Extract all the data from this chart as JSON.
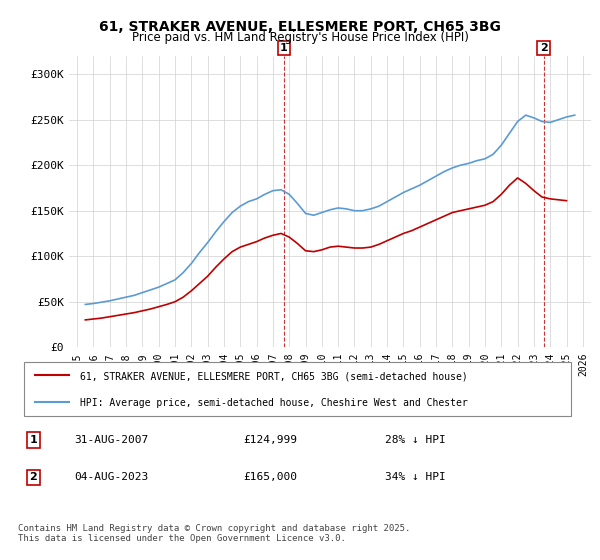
{
  "title": "61, STRAKER AVENUE, ELLESMERE PORT, CH65 3BG",
  "subtitle": "Price paid vs. HM Land Registry's House Price Index (HPI)",
  "hpi_label": "HPI: Average price, semi-detached house, Cheshire West and Chester",
  "property_label": "61, STRAKER AVENUE, ELLESMERE PORT, CH65 3BG (semi-detached house)",
  "annotation1": {
    "num": "1",
    "date": "31-AUG-2007",
    "price": "£124,999",
    "hpi_diff": "28% ↓ HPI",
    "x_year": 2007.67
  },
  "annotation2": {
    "num": "2",
    "date": "04-AUG-2023",
    "price": "£165,000",
    "hpi_diff": "34% ↓ HPI",
    "x_year": 2023.59
  },
  "footer": "Contains HM Land Registry data © Crown copyright and database right 2025.\nThis data is licensed under the Open Government Licence v3.0.",
  "xlim": [
    1994.5,
    2026.5
  ],
  "ylim": [
    0,
    320000
  ],
  "yticks": [
    0,
    50000,
    100000,
    150000,
    200000,
    250000,
    300000
  ],
  "ytick_labels": [
    "£0",
    "£50K",
    "£100K",
    "£150K",
    "£200K",
    "£250K",
    "£300K"
  ],
  "xticks": [
    1995,
    1996,
    1997,
    1998,
    1999,
    2000,
    2001,
    2002,
    2003,
    2004,
    2005,
    2006,
    2007,
    2008,
    2009,
    2010,
    2011,
    2012,
    2013,
    2014,
    2015,
    2016,
    2017,
    2018,
    2019,
    2020,
    2021,
    2022,
    2023,
    2024,
    2025,
    2026
  ],
  "hpi_color": "#5b9bd5",
  "property_color": "#c00000",
  "annotation_box_color": "#c00000",
  "background_color": "#ffffff",
  "grid_color": "#d0d0d0",
  "hpi_data": {
    "years": [
      1995.5,
      1996.0,
      1996.5,
      1997.0,
      1997.5,
      1998.0,
      1998.5,
      1999.0,
      1999.5,
      2000.0,
      2000.5,
      2001.0,
      2001.5,
      2002.0,
      2002.5,
      2003.0,
      2003.5,
      2004.0,
      2004.5,
      2005.0,
      2005.5,
      2006.0,
      2006.5,
      2007.0,
      2007.5,
      2008.0,
      2008.5,
      2009.0,
      2009.5,
      2010.0,
      2010.5,
      2011.0,
      2011.5,
      2012.0,
      2012.5,
      2013.0,
      2013.5,
      2014.0,
      2014.5,
      2015.0,
      2015.5,
      2016.0,
      2016.5,
      2017.0,
      2017.5,
      2018.0,
      2018.5,
      2019.0,
      2019.5,
      2020.0,
      2020.5,
      2021.0,
      2021.5,
      2022.0,
      2022.5,
      2023.0,
      2023.5,
      2024.0,
      2024.5,
      2025.0,
      2025.5
    ],
    "values": [
      47000,
      48000,
      49500,
      51000,
      53000,
      55000,
      57000,
      60000,
      63000,
      66000,
      70000,
      74000,
      82000,
      92000,
      104000,
      115000,
      127000,
      138000,
      148000,
      155000,
      160000,
      163000,
      168000,
      172000,
      173000,
      168000,
      158000,
      147000,
      145000,
      148000,
      151000,
      153000,
      152000,
      150000,
      150000,
      152000,
      155000,
      160000,
      165000,
      170000,
      174000,
      178000,
      183000,
      188000,
      193000,
      197000,
      200000,
      202000,
      205000,
      207000,
      212000,
      222000,
      235000,
      248000,
      255000,
      252000,
      248000,
      247000,
      250000,
      253000,
      255000
    ]
  },
  "property_data": {
    "years": [
      1995.5,
      1996.0,
      1996.5,
      1997.0,
      1997.5,
      1998.0,
      1998.5,
      1999.0,
      1999.5,
      2000.0,
      2000.5,
      2001.0,
      2001.5,
      2002.0,
      2002.5,
      2003.0,
      2003.5,
      2004.0,
      2004.5,
      2005.0,
      2005.5,
      2006.0,
      2006.5,
      2007.0,
      2007.5,
      2008.0,
      2008.5,
      2009.0,
      2009.5,
      2010.0,
      2010.5,
      2011.0,
      2011.5,
      2012.0,
      2012.5,
      2013.0,
      2013.5,
      2014.0,
      2014.5,
      2015.0,
      2015.5,
      2016.0,
      2016.5,
      2017.0,
      2017.5,
      2018.0,
      2018.5,
      2019.0,
      2019.5,
      2020.0,
      2020.5,
      2021.0,
      2021.5,
      2022.0,
      2022.5,
      2023.0,
      2023.5,
      2024.0,
      2024.5,
      2025.0
    ],
    "values": [
      30000,
      31000,
      32000,
      33500,
      35000,
      36500,
      38000,
      40000,
      42000,
      44500,
      47000,
      50000,
      55000,
      62000,
      70000,
      78000,
      88000,
      97000,
      105000,
      110000,
      113000,
      116000,
      120000,
      123000,
      124999,
      121000,
      114000,
      106000,
      105000,
      107000,
      110000,
      111000,
      110000,
      109000,
      109000,
      110000,
      113000,
      117000,
      121000,
      125000,
      128000,
      132000,
      136000,
      140000,
      144000,
      148000,
      150000,
      152000,
      154000,
      156000,
      160000,
      168000,
      178000,
      186000,
      180000,
      172000,
      165000,
      163000,
      162000,
      161000
    ]
  }
}
